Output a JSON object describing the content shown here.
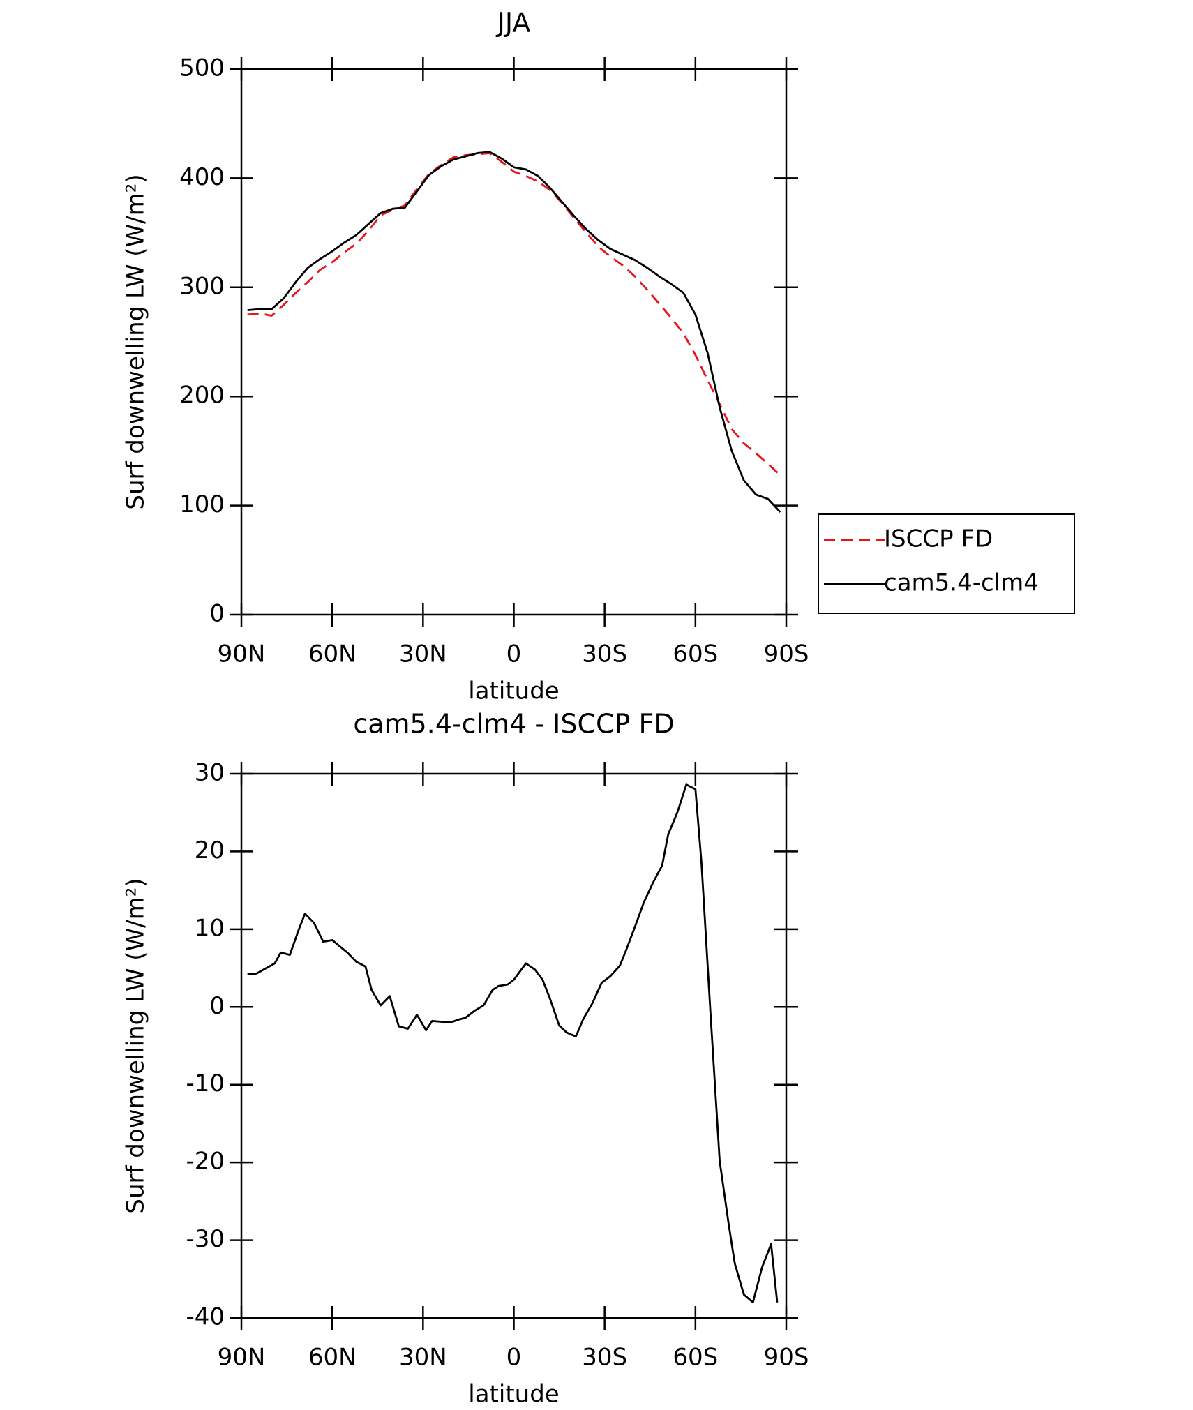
{
  "chart_data": [
    {
      "type": "line",
      "title": "JJA",
      "xlabel": "latitude",
      "ylabel": "Surf downwelling LW (W/m²)",
      "xlim": [
        90,
        -90
      ],
      "xticks": [
        {
          "value": 90,
          "label": "90N"
        },
        {
          "value": 60,
          "label": "60N"
        },
        {
          "value": 30,
          "label": "30N"
        },
        0,
        {
          "value": -30,
          "label": "30S"
        },
        {
          "value": -60,
          "label": "60S"
        },
        {
          "value": -90,
          "label": "90S"
        }
      ],
      "ylim": [
        0,
        500
      ],
      "yticks": [
        0,
        100,
        200,
        300,
        400,
        500
      ],
      "legend": "right",
      "x": [
        88,
        84,
        80,
        76,
        72,
        68,
        64,
        60,
        56,
        52,
        48,
        44,
        40,
        36,
        32,
        28,
        24,
        20,
        16,
        12,
        8,
        4,
        0,
        -4,
        -8,
        -12,
        -16,
        -20,
        -24,
        -28,
        -32,
        -36,
        -40,
        -44,
        -48,
        -52,
        -56,
        -60,
        -64,
        -68,
        -72,
        -76,
        -80,
        -84,
        -88
      ],
      "series": [
        {
          "name": "ISCCP FD",
          "color": "#e8141c",
          "line_style": "dashed",
          "values": [
            275,
            276,
            274,
            284,
            295,
            305,
            316,
            323,
            332,
            340,
            352,
            366,
            371,
            375,
            390,
            404,
            412,
            419,
            421,
            422,
            423,
            415,
            406,
            402,
            397,
            389,
            377,
            363,
            350,
            337,
            328,
            320,
            310,
            298,
            285,
            272,
            258,
            238,
            215,
            193,
            170,
            157,
            148,
            138,
            128
          ]
        },
        {
          "name": "cam5.4-clm4",
          "color": "#000000",
          "line_style": "solid",
          "values": [
            279,
            280,
            280,
            290,
            305,
            318,
            326,
            333,
            341,
            348,
            358,
            368,
            372,
            373,
            388,
            403,
            411,
            417,
            420,
            423,
            424,
            418,
            410,
            408,
            402,
            391,
            378,
            365,
            353,
            343,
            335,
            330,
            325,
            318,
            310,
            303,
            295,
            275,
            240,
            190,
            150,
            123,
            110,
            106,
            94
          ]
        }
      ]
    },
    {
      "type": "line",
      "title": "cam5.4-clm4 - ISCCP FD",
      "xlabel": "latitude",
      "ylabel": "Surf downwelling LW (W/m²)",
      "xlim": [
        90,
        -90
      ],
      "xticks": [
        {
          "value": 90,
          "label": "90N"
        },
        {
          "value": 60,
          "label": "60N"
        },
        {
          "value": 30,
          "label": "30N"
        },
        0,
        {
          "value": -30,
          "label": "30S"
        },
        {
          "value": -60,
          "label": "60S"
        },
        {
          "value": -90,
          "label": "90S"
        }
      ],
      "ylim": [
        -40,
        30
      ],
      "yticks": [
        -40,
        -30,
        -20,
        -10,
        0,
        10,
        20,
        30
      ],
      "x": [
        88,
        85,
        79,
        77,
        74,
        71,
        69,
        66,
        63,
        60,
        55,
        52,
        49,
        47,
        44,
        41,
        38,
        35,
        32,
        29,
        27,
        21,
        18,
        16,
        13,
        10,
        7,
        5,
        2,
        0,
        -4,
        -7,
        -9.5,
        -12,
        -15,
        -17.5,
        -20.5,
        -23,
        -26,
        -29,
        -32,
        -35,
        -37,
        -40,
        -43,
        -46,
        -49,
        -51,
        -54,
        -57,
        -60,
        -62,
        -65,
        -68,
        -71,
        -73,
        -76,
        -79,
        -82,
        -85,
        -87
      ],
      "series": [
        {
          "name": "cam5.4-clm4 - ISCCP FD",
          "color": "#000000",
          "line_style": "solid",
          "values": [
            4.2,
            4.3,
            5.6,
            7,
            6.7,
            10,
            12,
            10.8,
            8.4,
            8.6,
            7,
            5.8,
            5.2,
            2.2,
            0.2,
            1.4,
            -2.5,
            -2.8,
            -1,
            -3,
            -1.8,
            -2,
            -1.6,
            -1.4,
            -0.5,
            0.2,
            2.2,
            2.7,
            2.9,
            3.5,
            5.6,
            4.8,
            3.5,
            1,
            -2.4,
            -3.3,
            -3.8,
            -1.5,
            0.5,
            3.1,
            4,
            5.3,
            7.2,
            10.3,
            13.5,
            16,
            18.2,
            22.2,
            25,
            28.6,
            28,
            18.5,
            -1,
            -19.8,
            -28,
            -33,
            -37,
            -38,
            -33.5,
            -30.5,
            -38
          ]
        }
      ]
    }
  ]
}
